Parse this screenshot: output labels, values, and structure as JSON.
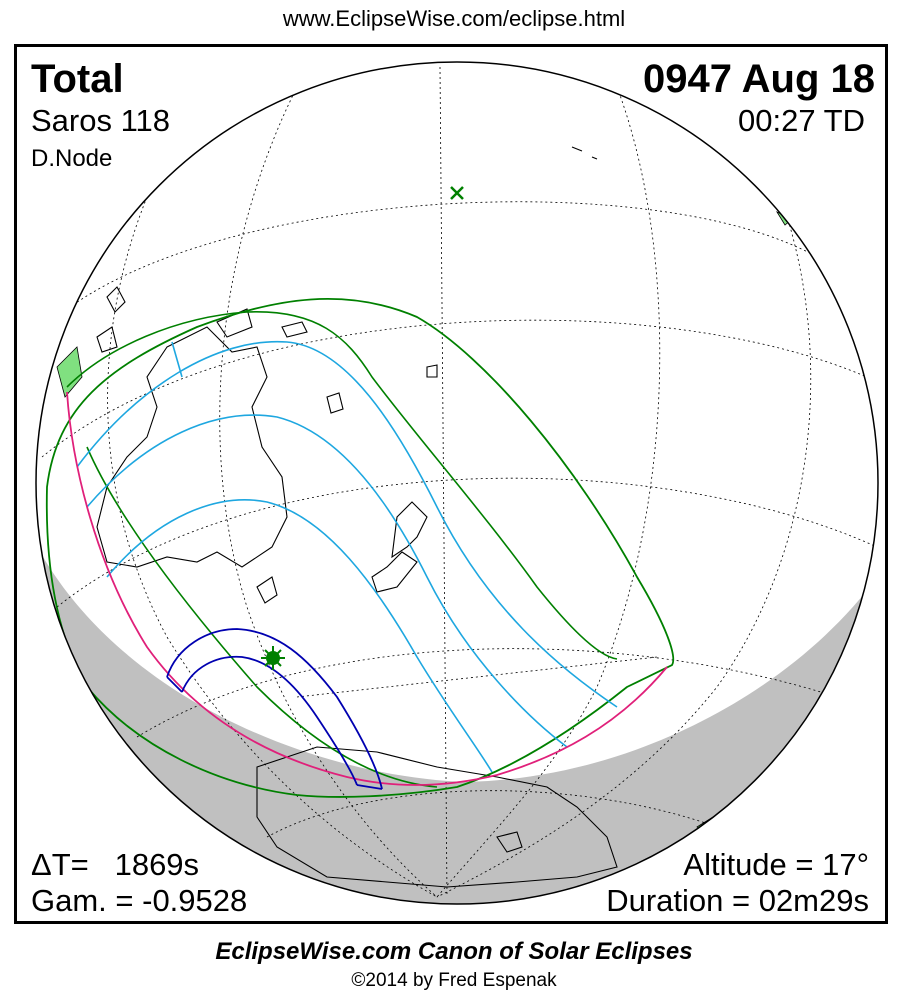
{
  "header": {
    "url": "www.EclipseWise.com/eclipse.html"
  },
  "eclipse": {
    "type": "Total",
    "saros": "Saros 118",
    "node": "D.Node",
    "date": "0947 Aug 18",
    "time": "00:27 TD"
  },
  "stats": {
    "delta_t": "ΔT=   1869s",
    "gamma": "Gam. = -0.9528",
    "altitude": "Altitude = 17°",
    "duration": "Duration = 02m29s"
  },
  "footer": {
    "canon": "EclipseWise.com Canon of Solar Eclipses",
    "copyright": "©2014 by Fred Espenak"
  },
  "colors": {
    "night": "#c0c0c0",
    "penumbra_limit": "#008000",
    "penumbra_contours": "#1ea7e0",
    "umbra_path": "#0000b0",
    "rise_set_curve": "#e0207a",
    "land": "#80e080",
    "greatest_eclipse": "#008000"
  },
  "icons": {
    "greatest_eclipse": "star-marker-icon",
    "subsolar_point": "x-marker-icon"
  }
}
